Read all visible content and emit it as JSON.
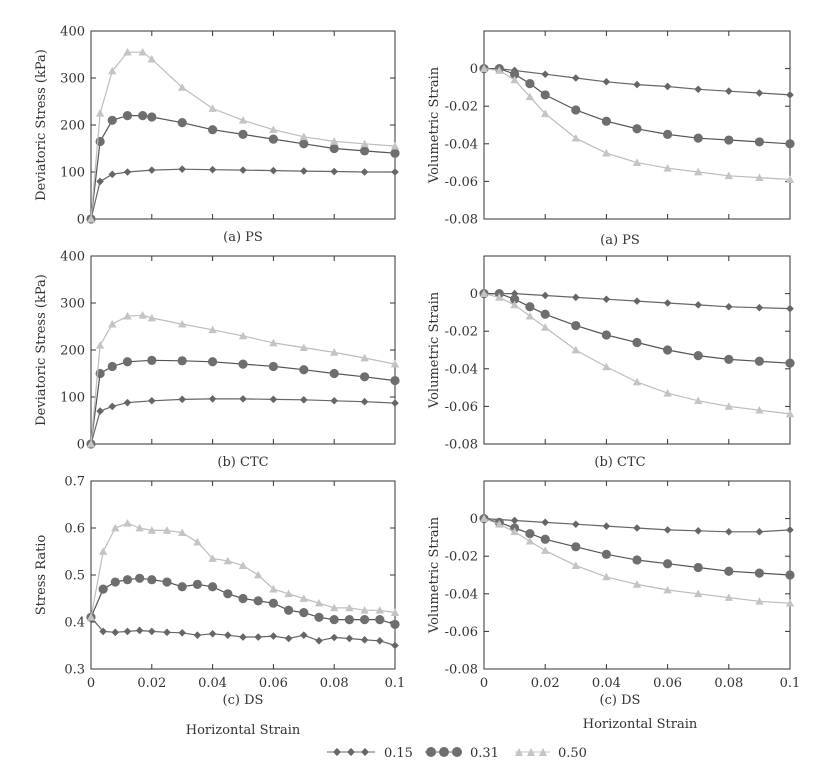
{
  "figure": {
    "xlabel": "Horizontal Strain",
    "legend": [
      "0.15",
      "0.31",
      "0.50"
    ],
    "colors": {
      "s015": "#666666",
      "s031": "#6e6e6e",
      "s050": "#c4c4c4",
      "axis": "#333333"
    }
  },
  "chart_data": [
    {
      "type": "line",
      "title": "(a) PS",
      "xlabel": "",
      "ylabel": "Deviatoric Stress (kPa)",
      "xlim": [
        0,
        0.1
      ],
      "ylim": [
        0,
        400
      ],
      "xticks": [],
      "xtick_labels": [],
      "yticks": [
        0,
        100,
        200,
        300,
        400
      ],
      "ytick_labels": [
        "0",
        "100",
        "200",
        "300",
        "400"
      ],
      "series": [
        {
          "name": "0.15",
          "x": [
            0,
            0.003,
            0.007,
            0.012,
            0.02,
            0.03,
            0.04,
            0.05,
            0.06,
            0.07,
            0.08,
            0.09,
            0.1
          ],
          "values": [
            0,
            80,
            95,
            100,
            104,
            106,
            105,
            104,
            103,
            102,
            101,
            100,
            100
          ]
        },
        {
          "name": "0.31",
          "x": [
            0,
            0.003,
            0.007,
            0.012,
            0.017,
            0.02,
            0.03,
            0.04,
            0.05,
            0.06,
            0.07,
            0.08,
            0.09,
            0.1
          ],
          "values": [
            0,
            165,
            210,
            220,
            220,
            217,
            205,
            190,
            180,
            170,
            160,
            150,
            145,
            140
          ]
        },
        {
          "name": "0.50",
          "x": [
            0,
            0.003,
            0.007,
            0.012,
            0.017,
            0.02,
            0.03,
            0.04,
            0.05,
            0.06,
            0.07,
            0.08,
            0.09,
            0.1
          ],
          "values": [
            0,
            225,
            315,
            355,
            355,
            340,
            280,
            235,
            210,
            190,
            175,
            165,
            160,
            155
          ]
        }
      ]
    },
    {
      "type": "line",
      "title": "(a) PS",
      "xlabel": "",
      "ylabel": "Volumetric Strain",
      "xlim": [
        0,
        0.1
      ],
      "ylim": [
        -0.08,
        0.02
      ],
      "xticks": [],
      "xtick_labels": [],
      "yticks": [
        0,
        -0.02,
        -0.04,
        -0.06,
        -0.08
      ],
      "ytick_labels": [
        "0",
        "-0.02",
        "-0.04",
        "-0.06",
        "-0.08"
      ],
      "series": [
        {
          "name": "0.15",
          "x": [
            0,
            0.005,
            0.01,
            0.02,
            0.03,
            0.04,
            0.05,
            0.06,
            0.07,
            0.08,
            0.09,
            0.1
          ],
          "values": [
            0,
            0,
            -0.001,
            -0.003,
            -0.005,
            -0.007,
            -0.0085,
            -0.0095,
            -0.011,
            -0.012,
            -0.013,
            -0.014
          ]
        },
        {
          "name": "0.31",
          "x": [
            0,
            0.005,
            0.01,
            0.015,
            0.02,
            0.03,
            0.04,
            0.05,
            0.06,
            0.07,
            0.08,
            0.09,
            0.1
          ],
          "values": [
            0,
            0,
            -0.003,
            -0.008,
            -0.014,
            -0.022,
            -0.028,
            -0.032,
            -0.035,
            -0.037,
            -0.038,
            -0.039,
            -0.04
          ]
        },
        {
          "name": "0.50",
          "x": [
            0,
            0.005,
            0.01,
            0.015,
            0.02,
            0.03,
            0.04,
            0.05,
            0.06,
            0.07,
            0.08,
            0.09,
            0.1
          ],
          "values": [
            0,
            -0.001,
            -0.006,
            -0.015,
            -0.024,
            -0.037,
            -0.045,
            -0.05,
            -0.053,
            -0.055,
            -0.057,
            -0.058,
            -0.059
          ]
        }
      ]
    },
    {
      "type": "line",
      "title": "(b) CTC",
      "xlabel": "",
      "ylabel": "Deviatoric Stress (kPa)",
      "xlim": [
        0,
        0.1
      ],
      "ylim": [
        0,
        400
      ],
      "xticks": [],
      "xtick_labels": [],
      "yticks": [
        0,
        100,
        200,
        300,
        400
      ],
      "ytick_labels": [
        "0",
        "100",
        "200",
        "300",
        "400"
      ],
      "series": [
        {
          "name": "0.15",
          "x": [
            0,
            0.003,
            0.007,
            0.012,
            0.02,
            0.03,
            0.04,
            0.05,
            0.06,
            0.07,
            0.08,
            0.09,
            0.1
          ],
          "values": [
            0,
            70,
            80,
            88,
            92,
            95,
            96,
            96,
            95,
            94,
            92,
            90,
            87
          ]
        },
        {
          "name": "0.31",
          "x": [
            0,
            0.003,
            0.007,
            0.012,
            0.02,
            0.03,
            0.04,
            0.05,
            0.06,
            0.07,
            0.08,
            0.09,
            0.1
          ],
          "values": [
            0,
            150,
            165,
            175,
            178,
            177,
            175,
            170,
            165,
            158,
            150,
            143,
            135
          ]
        },
        {
          "name": "0.50",
          "x": [
            0,
            0.003,
            0.007,
            0.012,
            0.017,
            0.02,
            0.03,
            0.04,
            0.05,
            0.06,
            0.07,
            0.08,
            0.09,
            0.1
          ],
          "values": [
            0,
            210,
            255,
            272,
            274,
            268,
            255,
            243,
            230,
            215,
            205,
            195,
            183,
            170
          ]
        }
      ]
    },
    {
      "type": "line",
      "title": "(b) CTC",
      "xlabel": "",
      "ylabel": "Volumetric Strain",
      "xlim": [
        0,
        0.1
      ],
      "ylim": [
        -0.08,
        0.02
      ],
      "xticks": [],
      "xtick_labels": [],
      "yticks": [
        0,
        -0.02,
        -0.04,
        -0.06,
        -0.08
      ],
      "ytick_labels": [
        "0",
        "-0.02",
        "-0.04",
        "-0.06",
        "-0.08"
      ],
      "series": [
        {
          "name": "0.15",
          "x": [
            0,
            0.01,
            0.02,
            0.03,
            0.04,
            0.05,
            0.06,
            0.07,
            0.08,
            0.09,
            0.1
          ],
          "values": [
            0,
            0,
            -0.001,
            -0.002,
            -0.003,
            -0.004,
            -0.005,
            -0.006,
            -0.007,
            -0.0075,
            -0.008
          ]
        },
        {
          "name": "0.31",
          "x": [
            0,
            0.005,
            0.01,
            0.015,
            0.02,
            0.03,
            0.04,
            0.05,
            0.06,
            0.07,
            0.08,
            0.09,
            0.1
          ],
          "values": [
            0,
            0,
            -0.003,
            -0.007,
            -0.011,
            -0.017,
            -0.022,
            -0.026,
            -0.03,
            -0.033,
            -0.035,
            -0.036,
            -0.037
          ]
        },
        {
          "name": "0.50",
          "x": [
            0,
            0.005,
            0.01,
            0.015,
            0.02,
            0.03,
            0.04,
            0.05,
            0.06,
            0.07,
            0.08,
            0.09,
            0.1
          ],
          "values": [
            0,
            -0.002,
            -0.006,
            -0.012,
            -0.018,
            -0.03,
            -0.039,
            -0.047,
            -0.053,
            -0.057,
            -0.06,
            -0.062,
            -0.064
          ]
        }
      ]
    },
    {
      "type": "line",
      "title": "(c) DS",
      "xlabel": "Horizontal Strain",
      "ylabel": "Stress Ratio",
      "xlim": [
        0,
        0.1
      ],
      "ylim": [
        0.3,
        0.7
      ],
      "xticks": [
        0,
        0.02,
        0.04,
        0.06,
        0.08,
        0.1
      ],
      "xtick_labels": [
        "0",
        "0.02",
        "0.04",
        "0.06",
        "0.08",
        "0.1"
      ],
      "yticks": [
        0.3,
        0.4,
        0.5,
        0.6,
        0.7
      ],
      "ytick_labels": [
        "0.3",
        "0.4",
        "0.5",
        "0.6",
        "0.7"
      ],
      "series": [
        {
          "name": "0.15",
          "x": [
            0,
            0.004,
            0.008,
            0.012,
            0.016,
            0.02,
            0.025,
            0.03,
            0.035,
            0.04,
            0.045,
            0.05,
            0.055,
            0.06,
            0.065,
            0.07,
            0.075,
            0.08,
            0.085,
            0.09,
            0.095,
            0.1
          ],
          "values": [
            0.41,
            0.38,
            0.378,
            0.38,
            0.382,
            0.38,
            0.378,
            0.377,
            0.372,
            0.375,
            0.372,
            0.368,
            0.368,
            0.37,
            0.365,
            0.372,
            0.36,
            0.367,
            0.365,
            0.362,
            0.36,
            0.35
          ]
        },
        {
          "name": "0.31",
          "x": [
            0,
            0.004,
            0.008,
            0.012,
            0.016,
            0.02,
            0.025,
            0.03,
            0.035,
            0.04,
            0.045,
            0.05,
            0.055,
            0.06,
            0.065,
            0.07,
            0.075,
            0.08,
            0.085,
            0.09,
            0.095,
            0.1
          ],
          "values": [
            0.41,
            0.47,
            0.485,
            0.49,
            0.493,
            0.49,
            0.485,
            0.475,
            0.48,
            0.475,
            0.46,
            0.45,
            0.445,
            0.44,
            0.425,
            0.42,
            0.41,
            0.405,
            0.405,
            0.405,
            0.405,
            0.395
          ]
        },
        {
          "name": "0.50",
          "x": [
            0,
            0.004,
            0.008,
            0.012,
            0.016,
            0.02,
            0.025,
            0.03,
            0.035,
            0.04,
            0.045,
            0.05,
            0.055,
            0.06,
            0.065,
            0.07,
            0.075,
            0.08,
            0.085,
            0.09,
            0.095,
            0.1
          ],
          "values": [
            0.41,
            0.55,
            0.6,
            0.61,
            0.6,
            0.595,
            0.595,
            0.59,
            0.57,
            0.535,
            0.53,
            0.52,
            0.5,
            0.47,
            0.46,
            0.45,
            0.44,
            0.43,
            0.43,
            0.425,
            0.425,
            0.42
          ]
        }
      ]
    },
    {
      "type": "line",
      "title": "(c) DS",
      "xlabel": "Horizontal Strain",
      "ylabel": "Volumetric Strain",
      "xlim": [
        0,
        0.1
      ],
      "ylim": [
        -0.08,
        0.02
      ],
      "xticks": [
        0,
        0.02,
        0.04,
        0.06,
        0.08,
        0.1
      ],
      "xtick_labels": [
        "0",
        "0.02",
        "0.04",
        "0.06",
        "0.08",
        "0.1"
      ],
      "yticks": [
        0,
        -0.02,
        -0.04,
        -0.06,
        -0.08
      ],
      "ytick_labels": [
        "0",
        "-0.02",
        "-0.04",
        "-0.06",
        "-0.08"
      ],
      "series": [
        {
          "name": "0.15",
          "x": [
            0,
            0.01,
            0.02,
            0.03,
            0.04,
            0.05,
            0.06,
            0.07,
            0.08,
            0.09,
            0.1
          ],
          "values": [
            0,
            -0.001,
            -0.002,
            -0.003,
            -0.004,
            -0.005,
            -0.006,
            -0.0065,
            -0.007,
            -0.007,
            -0.006
          ]
        },
        {
          "name": "0.31",
          "x": [
            0,
            0.005,
            0.01,
            0.015,
            0.02,
            0.03,
            0.04,
            0.05,
            0.06,
            0.07,
            0.08,
            0.09,
            0.1
          ],
          "values": [
            0,
            -0.002,
            -0.005,
            -0.008,
            -0.011,
            -0.015,
            -0.019,
            -0.022,
            -0.024,
            -0.026,
            -0.028,
            -0.029,
            -0.03
          ]
        },
        {
          "name": "0.50",
          "x": [
            0,
            0.005,
            0.01,
            0.015,
            0.02,
            0.03,
            0.04,
            0.05,
            0.06,
            0.07,
            0.08,
            0.09,
            0.1
          ],
          "values": [
            0,
            -0.003,
            -0.007,
            -0.012,
            -0.017,
            -0.025,
            -0.031,
            -0.035,
            -0.038,
            -0.04,
            -0.042,
            -0.044,
            -0.045
          ]
        }
      ]
    }
  ]
}
